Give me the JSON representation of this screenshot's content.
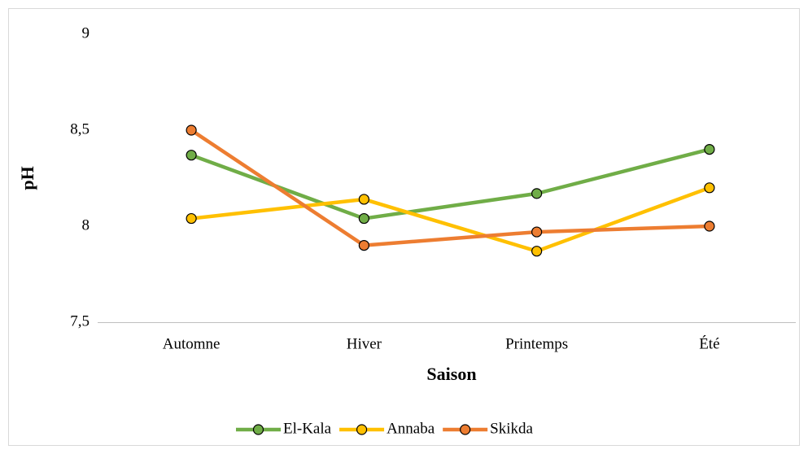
{
  "chart_data": {
    "type": "line",
    "categories": [
      "Automne",
      "Hiver",
      "Printemps",
      "Été"
    ],
    "series": [
      {
        "name": "El-Kala",
        "color": "#70ad47",
        "values": [
          8.37,
          8.04,
          8.17,
          8.4
        ]
      },
      {
        "name": "Annaba",
        "color": "#ffc000",
        "values": [
          8.04,
          8.14,
          7.87,
          8.2
        ]
      },
      {
        "name": "Skikda",
        "color": "#ed7d31",
        "values": [
          8.5,
          7.9,
          7.97,
          8.0
        ]
      }
    ],
    "ylim": [
      7.5,
      9
    ],
    "yticks": [
      {
        "value": 7.5,
        "label": "7,5"
      },
      8,
      {
        "value": 8.5,
        "label": "8,5"
      },
      9
    ],
    "y_label": "pH",
    "x_label": "Saison",
    "grid": false,
    "legend": "bottom"
  }
}
